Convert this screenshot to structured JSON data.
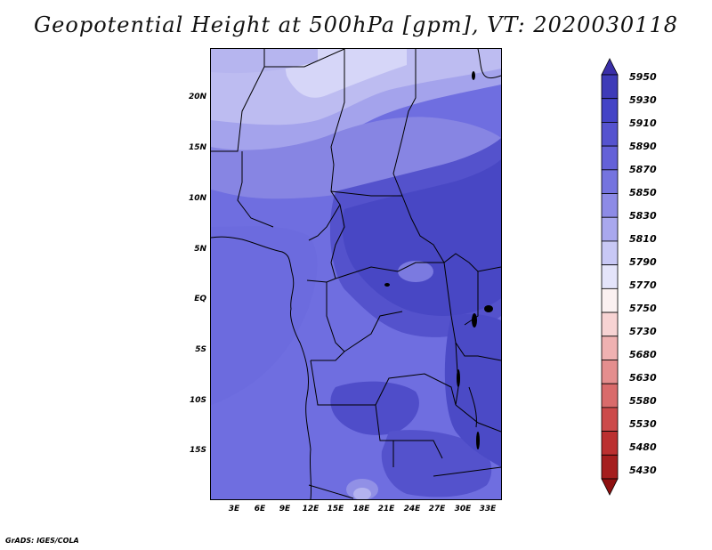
{
  "title": "Geopotential Height at 500hPa [gpm], VT: 2020030118",
  "lat_labels": [
    "20N",
    "15N",
    "10N",
    "5N",
    "EQ",
    "5S",
    "10S",
    "15S"
  ],
  "lon_labels": [
    "3E",
    "6E",
    "9E",
    "12E",
    "15E",
    "18E",
    "21E",
    "24E",
    "27E",
    "30E",
    "33E"
  ],
  "colorbar": {
    "levels": [
      "5950",
      "5930",
      "5910",
      "5890",
      "5870",
      "5850",
      "5830",
      "5810",
      "5790",
      "5770",
      "5750",
      "5730",
      "5680",
      "5630",
      "5580",
      "5530",
      "5480",
      "5430"
    ],
    "colors": [
      "#3a2fa8",
      "#3e3bb8",
      "#4444c6",
      "#5553cf",
      "#6461d8",
      "#7574df",
      "#8d8be6",
      "#a9a8ee",
      "#c8c8f5",
      "#e4e4fa",
      "#fbf1f1",
      "#f7d3d3",
      "#efb1b1",
      "#e48e8e",
      "#d96b6b",
      "#cc4a4a",
      "#bb3030",
      "#a51e1e",
      "#8e1010"
    ]
  },
  "credit": "GrADS: IGES/COLA"
}
